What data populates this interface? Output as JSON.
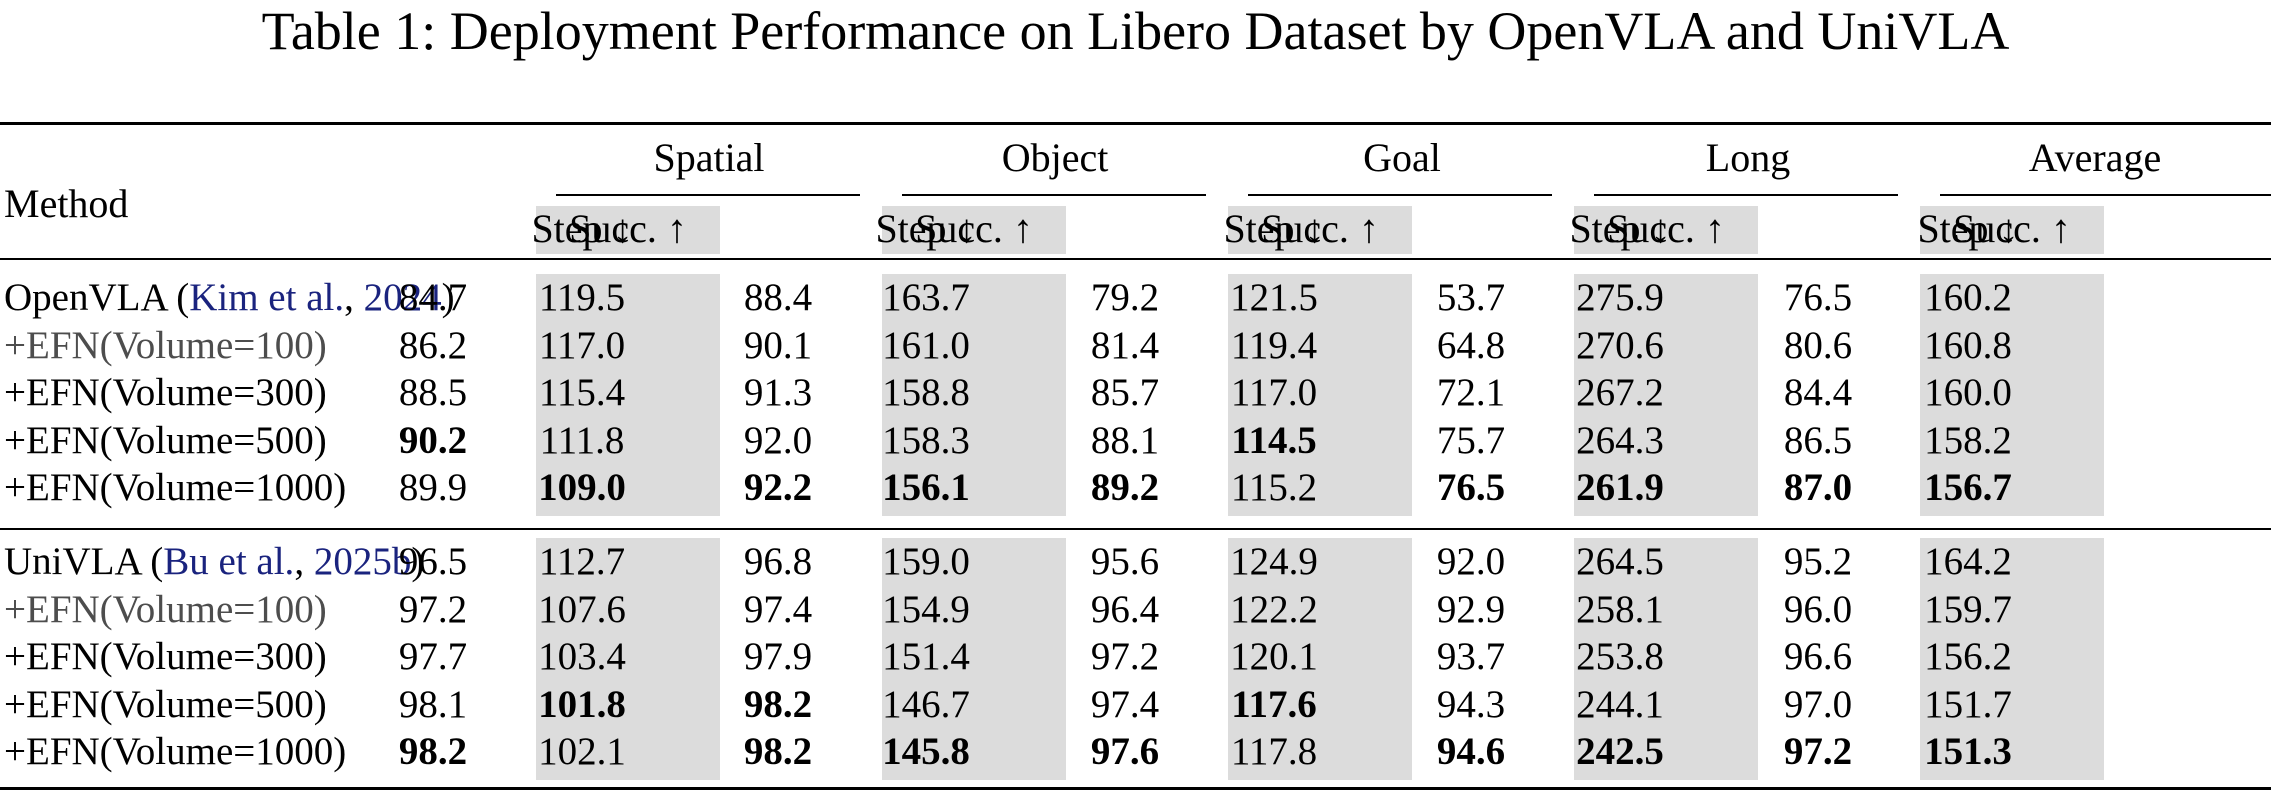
{
  "caption": "Table 1: Deployment Performance on Libero Dataset by OpenVLA and UniVLA",
  "header": {
    "method": "Method",
    "groups": [
      "Spatial",
      "Object",
      "Goal",
      "Long",
      "Average"
    ],
    "succ": "Succ. ↑",
    "step": "Step ↓"
  },
  "sections": [
    {
      "rows": [
        {
          "method": {
            "name": "OpenVLA (",
            "cite_author": "Kim et al.",
            "sep": ", ",
            "cite_year": "2024",
            "close": ")"
          },
          "values": [
            "84.7",
            "119.5",
            "88.4",
            "163.7",
            "79.2",
            "121.5",
            "53.7",
            "275.9",
            "76.5",
            "160.2"
          ],
          "bold": []
        },
        {
          "method": {
            "name": "+EFN(Volume=100)"
          },
          "values": [
            "86.2",
            "117.0",
            "90.1",
            "161.0",
            "81.4",
            "119.4",
            "64.8",
            "270.6",
            "80.6",
            "160.8"
          ],
          "bold": [],
          "muted": true
        },
        {
          "method": {
            "name": "+EFN(Volume=300)"
          },
          "values": [
            "88.5",
            "115.4",
            "91.3",
            "158.8",
            "85.7",
            "117.0",
            "72.1",
            "267.2",
            "84.4",
            "160.0"
          ],
          "bold": []
        },
        {
          "method": {
            "name": "+EFN(Volume=500)"
          },
          "values": [
            "90.2",
            "111.8",
            "92.0",
            "158.3",
            "88.1",
            "114.5",
            "75.7",
            "264.3",
            "86.5",
            "158.2"
          ],
          "bold": [
            0,
            5
          ]
        },
        {
          "method": {
            "name": "+EFN(Volume=1000)"
          },
          "values": [
            "89.9",
            "109.0",
            "92.2",
            "156.1",
            "89.2",
            "115.2",
            "76.5",
            "261.9",
            "87.0",
            "156.7"
          ],
          "bold": [
            1,
            2,
            3,
            4,
            6,
            7,
            8,
            9
          ]
        }
      ]
    },
    {
      "rows": [
        {
          "method": {
            "name": "UniVLA (",
            "cite_author": "Bu et al.",
            "sep": ", ",
            "cite_year": "2025b",
            "close": ")"
          },
          "values": [
            "96.5",
            "112.7",
            "96.8",
            "159.0",
            "95.6",
            "124.9",
            "92.0",
            "264.5",
            "95.2",
            "164.2"
          ],
          "bold": []
        },
        {
          "method": {
            "name": "+EFN(Volume=100)"
          },
          "values": [
            "97.2",
            "107.6",
            "97.4",
            "154.9",
            "96.4",
            "122.2",
            "92.9",
            "258.1",
            "96.0",
            "159.7"
          ],
          "bold": [],
          "muted": true
        },
        {
          "method": {
            "name": "+EFN(Volume=300)"
          },
          "values": [
            "97.7",
            "103.4",
            "97.9",
            "151.4",
            "97.2",
            "120.1",
            "93.7",
            "253.8",
            "96.6",
            "156.2"
          ],
          "bold": []
        },
        {
          "method": {
            "name": "+EFN(Volume=500)"
          },
          "values": [
            "98.1",
            "101.8",
            "98.2",
            "146.7",
            "97.4",
            "117.6",
            "94.3",
            "244.1",
            "97.0",
            "151.7"
          ],
          "bold": [
            1,
            2,
            5
          ]
        },
        {
          "method": {
            "name": "+EFN(Volume=1000)"
          },
          "values": [
            "98.2",
            "102.1",
            "98.2",
            "145.8",
            "97.6",
            "117.8",
            "94.6",
            "242.5",
            "97.2",
            "151.3"
          ],
          "bold": [
            0,
            2,
            3,
            4,
            6,
            7,
            8,
            9
          ]
        }
      ]
    }
  ],
  "colors": {
    "shade": "#dcdcdc",
    "citation": "#1a237e",
    "muted": "#4d4d4d"
  }
}
